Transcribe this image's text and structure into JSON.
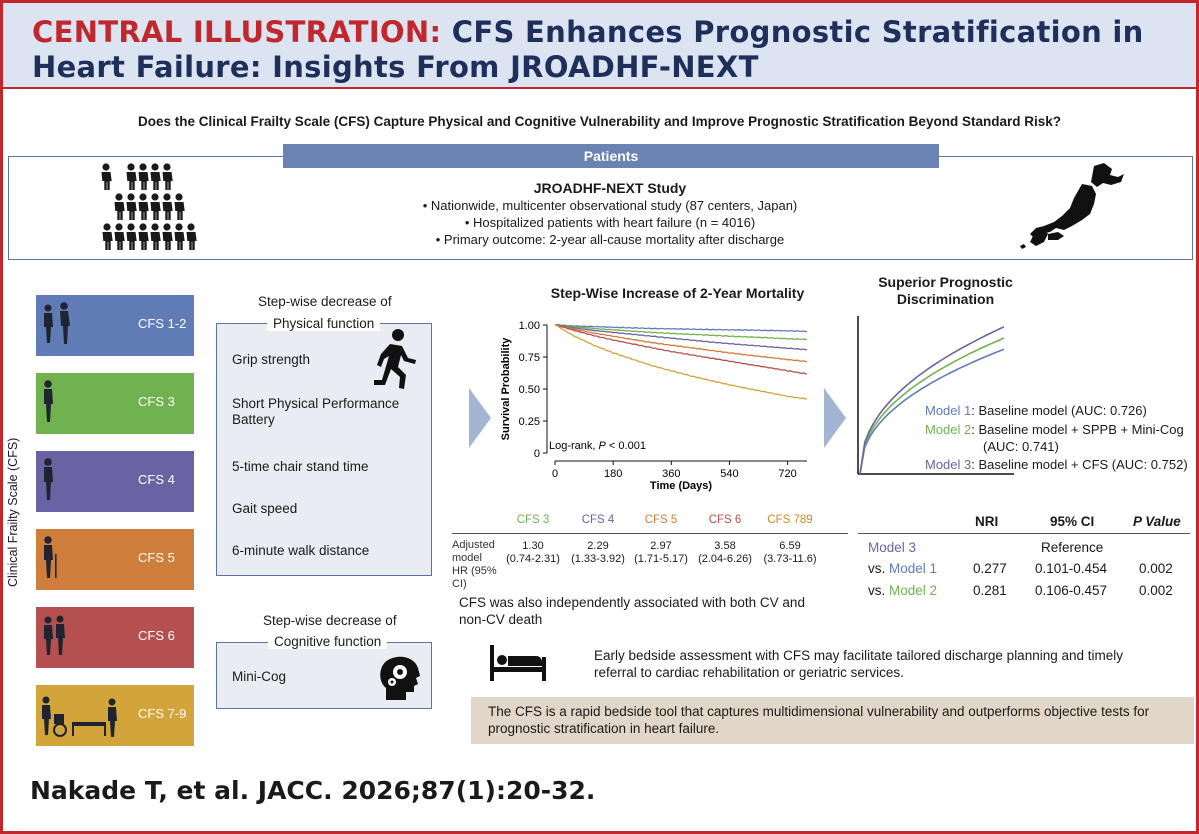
{
  "header": {
    "label": "CENTRAL ILLUSTRATION:",
    "title_line1": "CFS Enhances Prognostic Stratification in",
    "title_line2": "Heart Failure: Insights From JROADHF-NEXT"
  },
  "question": "Does the Clinical Frailty Scale (CFS) Capture Physical and Cognitive Vulnerability and Improve Prognostic Stratification Beyond Standard Risk?",
  "patients": {
    "bar_label": "Patients",
    "study_title": "JROADHF-NEXT Study",
    "bullets": [
      "• Nationwide, multicenter observational study (87 centers, Japan)",
      "• Hospitalized patients with heart failure (n = 4016)",
      "• Primary outcome: 2-year all-cause mortality after discharge"
    ]
  },
  "cfs_axis_label": "Clinical Frailty Scale (CFS)",
  "cfs_levels": [
    {
      "label": "CFS 1-2",
      "color": "#5f7cb6"
    },
    {
      "label": "CFS 3",
      "color": "#6fb24f"
    },
    {
      "label": "CFS 4",
      "color": "#6a63a3"
    },
    {
      "label": "CFS 5",
      "color": "#cf7d3a"
    },
    {
      "label": "CFS 6",
      "color": "#b4504f"
    },
    {
      "label": "CFS 7-9",
      "color": "#d2a43a"
    }
  ],
  "physical": {
    "title_line1": "Step-wise decrease of",
    "title_line2": "Physical function",
    "items": [
      "Grip strength",
      "Short Physical Performance Battery",
      "5-time chair stand time",
      "Gait speed",
      "6-minute walk distance"
    ]
  },
  "cognitive": {
    "title_line1": "Step-wise decrease of",
    "title_line2": "Cognitive function",
    "items": [
      "Mini-Cog"
    ]
  },
  "mortality": {
    "title": "Step-Wise Increase of 2-Year Mortality",
    "annotation_prefix": "Log-rank, ",
    "annotation_p": "P",
    "annotation_suffix": " < 0.001"
  },
  "chart_data": {
    "type": "line",
    "xlabel": "Time (Days)",
    "ylabel": "Survival Probability",
    "xlim": [
      0,
      780
    ],
    "ylim": [
      0,
      1.0
    ],
    "x_ticks": [
      "0",
      "180",
      "360",
      "540",
      "720"
    ],
    "y_ticks": [
      "0",
      "0.25",
      "0.50",
      "0.75",
      "1.00"
    ],
    "x": [
      0,
      60,
      120,
      180,
      240,
      300,
      360,
      420,
      480,
      540,
      600,
      660,
      720,
      780
    ],
    "series": [
      {
        "color": "#5f7cb6",
        "values": [
          1.0,
          0.99,
          0.985,
          0.98,
          0.975,
          0.97,
          0.968,
          0.965,
          0.962,
          0.96,
          0.958,
          0.955,
          0.952,
          0.948
        ]
      },
      {
        "color": "#6fb24f",
        "values": [
          1.0,
          0.985,
          0.97,
          0.96,
          0.95,
          0.94,
          0.932,
          0.925,
          0.918,
          0.91,
          0.904,
          0.898,
          0.89,
          0.885
        ]
      },
      {
        "color": "#6a63a3",
        "values": [
          1.0,
          0.975,
          0.955,
          0.94,
          0.925,
          0.91,
          0.895,
          0.88,
          0.865,
          0.852,
          0.84,
          0.828,
          0.816,
          0.805
        ]
      },
      {
        "color": "#cf7d3a",
        "values": [
          1.0,
          0.965,
          0.935,
          0.91,
          0.885,
          0.86,
          0.84,
          0.82,
          0.8,
          0.78,
          0.762,
          0.745,
          0.728,
          0.712
        ]
      },
      {
        "color": "#b4504f",
        "values": [
          1.0,
          0.955,
          0.915,
          0.88,
          0.85,
          0.82,
          0.79,
          0.765,
          0.74,
          0.715,
          0.69,
          0.665,
          0.64,
          0.615
        ]
      },
      {
        "color": "#d2a43a",
        "values": [
          1.0,
          0.91,
          0.84,
          0.78,
          0.73,
          0.68,
          0.64,
          0.6,
          0.565,
          0.53,
          0.5,
          0.47,
          0.44,
          0.42
        ]
      }
    ]
  },
  "hazard": {
    "row_label": [
      "Adjusted",
      "model",
      "HR (95% CI)"
    ],
    "columns": [
      {
        "label": "CFS 3",
        "color": "#6fb24f",
        "hr": "1.30",
        "ci": "(0.74-2.31)"
      },
      {
        "label": "CFS 4",
        "color": "#6a63a3",
        "hr": "2.29",
        "ci": "(1.33-3.92)"
      },
      {
        "label": "CFS 5",
        "color": "#cf7d3a",
        "hr": "2.97",
        "ci": "(1.71-5.17)"
      },
      {
        "label": "CFS 6",
        "color": "#b4504f",
        "hr": "3.58",
        "ci": "(2.04-6.26)"
      },
      {
        "label": "CFS 789",
        "color": "#c98a2a",
        "hr": "6.59",
        "ci": "(3.73-11.6)"
      }
    ],
    "note": "CFS was also independently associated with both CV and non-CV death"
  },
  "discrimination": {
    "title_line1": "Superior Prognostic",
    "title_line2": "Discrimination",
    "models": [
      {
        "name": "Model 1",
        "desc": ": Baseline model (AUC: 0.726)",
        "color": "#5f7cb6"
      },
      {
        "name": "Model 2",
        "desc": ": Baseline model + SPPB + Mini-Cog",
        "desc2": "(AUC: 0.741)",
        "color": "#6fb24f"
      },
      {
        "name": "Model 3",
        "desc": ": Baseline model + CFS (AUC: 0.752)",
        "color": "#6a63a3"
      }
    ],
    "curve_levels": [
      0.78,
      0.85,
      0.92
    ]
  },
  "nri": {
    "headers": [
      "NRI",
      "95% CI",
      "P Value"
    ],
    "reference_model": "Model 3",
    "reference_label": "Reference",
    "rows": [
      {
        "vs": "vs.",
        "model": "Model 1",
        "color": "#5f7cb6",
        "nri": "0.277",
        "ci": "0.101-0.454",
        "p": "0.002"
      },
      {
        "vs": "vs.",
        "model": "Model 2",
        "color": "#6fb24f",
        "nri": "0.281",
        "ci": "0.106-0.457",
        "p": "0.002"
      }
    ]
  },
  "bedside": "Early bedside assessment with CFS may facilitate tailored discharge planning and timely referral to cardiac rehabilitation or geriatric services.",
  "conclusion": "The CFS is a rapid bedside tool that captures multidimensional vulnerability and outperforms objective tests for prognostic stratification in heart failure.",
  "citation": "Nakade T, et al. JACC. 2026;87(1):20-32."
}
